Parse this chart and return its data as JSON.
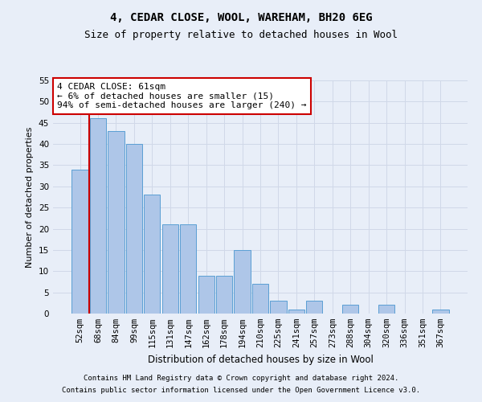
{
  "title": "4, CEDAR CLOSE, WOOL, WAREHAM, BH20 6EG",
  "subtitle": "Size of property relative to detached houses in Wool",
  "xlabel": "Distribution of detached houses by size in Wool",
  "ylabel": "Number of detached properties",
  "categories": [
    "52sqm",
    "68sqm",
    "84sqm",
    "99sqm",
    "115sqm",
    "131sqm",
    "147sqm",
    "162sqm",
    "178sqm",
    "194sqm",
    "210sqm",
    "225sqm",
    "241sqm",
    "257sqm",
    "273sqm",
    "288sqm",
    "304sqm",
    "320sqm",
    "336sqm",
    "351sqm",
    "367sqm"
  ],
  "values": [
    34,
    46,
    43,
    40,
    28,
    21,
    21,
    9,
    9,
    15,
    7,
    3,
    1,
    3,
    0,
    2,
    0,
    2,
    0,
    0,
    1
  ],
  "bar_color": "#aec6e8",
  "bar_edge_color": "#5a9fd4",
  "annotation_box_color": "#ffffff",
  "annotation_box_edge": "#cc0000",
  "annotation_text": "4 CEDAR CLOSE: 61sqm\n← 6% of detached houses are smaller (15)\n94% of semi-detached houses are larger (240) →",
  "ylim": [
    0,
    55
  ],
  "yticks": [
    0,
    5,
    10,
    15,
    20,
    25,
    30,
    35,
    40,
    45,
    50,
    55
  ],
  "grid_color": "#d0d8e8",
  "background_color": "#e8eef8",
  "plot_bg_color": "#e8eef8",
  "vline_color": "#cc0000",
  "vline_x": 0.5,
  "footer1": "Contains HM Land Registry data © Crown copyright and database right 2024.",
  "footer2": "Contains public sector information licensed under the Open Government Licence v3.0.",
  "title_fontsize": 10,
  "subtitle_fontsize": 9,
  "xlabel_fontsize": 8.5,
  "ylabel_fontsize": 8,
  "annotation_fontsize": 8,
  "footer_fontsize": 6.5,
  "tick_fontsize": 7.5
}
